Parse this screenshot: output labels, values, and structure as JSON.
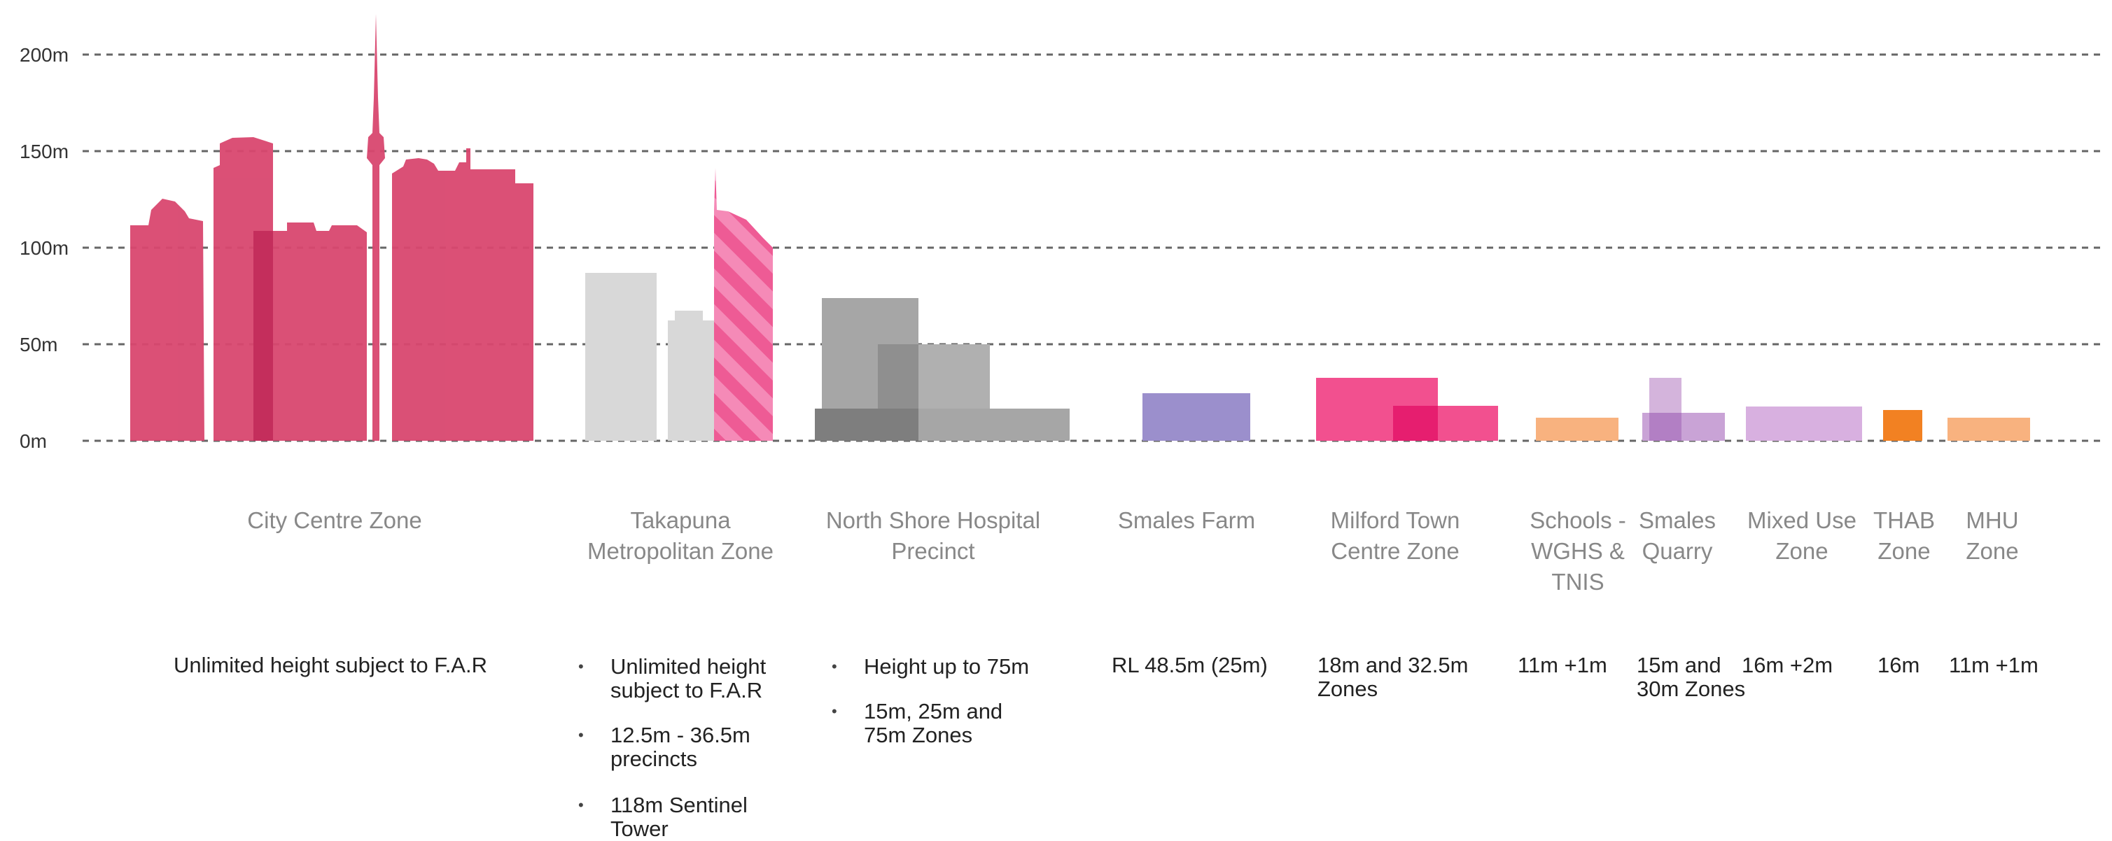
{
  "chart_data": {
    "type": "bar",
    "ylabel": "",
    "ylim": [
      0,
      200
    ],
    "grid": true,
    "yticks": [
      "0m",
      "50m",
      "100m",
      "150m",
      "200m"
    ],
    "yticks_values": [
      0,
      50,
      100,
      150,
      200
    ],
    "categories": [
      "City Centre Zone",
      "Takapuna Metropolitan Zone",
      "North Shore Hospital Precinct",
      "Smales Farm",
      "Milford Town Centre Zone",
      "Schools - WGHS & TNIS",
      "Smales Quarry",
      "Mixed Use Zone",
      "THAB Zone",
      "MHU Zone"
    ],
    "max_heights_m": [
      220,
      118,
      75,
      25,
      32.5,
      12,
      30,
      18,
      16,
      12
    ],
    "colors": {
      "city_centre": "#d9476f",
      "city_centre_dark": "#c42e5c",
      "takapuna_grey": "#d8d8d8",
      "takapuna_pink": "#ee5b95",
      "hospital_grey": "#a6a6a6",
      "hospital_dark": "#7e7e7e",
      "smales_farm": "#9b8fcc",
      "milford": "#f2508f",
      "milford_dark": "#e61e6f",
      "schools": "#f8b27f",
      "smales_quarry": "#c9a3d6",
      "mixed_use": "#d8b0e0",
      "thab": "#f28122",
      "mhu": "#f8b27f",
      "gridline": "#666666"
    }
  },
  "zones": [
    {
      "name": "City Centre Zone",
      "notes": [
        {
          "text": "Unlimited height subject to F.A.R",
          "bullet": false
        }
      ]
    },
    {
      "name": "Takapuna\nMetropolitan Zone",
      "notes": [
        {
          "text": "Unlimited height\nsubject to F.A.R",
          "bullet": true
        },
        {
          "text": "12.5m - 36.5m\nprecincts",
          "bullet": true
        },
        {
          "text": "118m Sentinel\nTower",
          "bullet": true
        }
      ]
    },
    {
      "name": "North Shore Hospital\nPrecinct",
      "notes": [
        {
          "text": "Height up to 75m",
          "bullet": true
        },
        {
          "text": "15m, 25m and\n75m Zones",
          "bullet": true
        }
      ]
    },
    {
      "name": "Smales Farm",
      "notes": [
        {
          "text": "RL 48.5m (25m)",
          "bullet": false
        }
      ]
    },
    {
      "name": "Milford Town\nCentre Zone",
      "notes": [
        {
          "text": "18m and 32.5m\nZones",
          "bullet": false
        }
      ]
    },
    {
      "name": "Schools -\nWGHS &\nTNIS",
      "notes": [
        {
          "text": "11m +1m",
          "bullet": false
        }
      ]
    },
    {
      "name": "Smales\nQuarry",
      "notes": [
        {
          "text": "15m and\n30m Zones",
          "bullet": false
        }
      ]
    },
    {
      "name": "Mixed Use\nZone",
      "notes": [
        {
          "text": "16m +2m",
          "bullet": false
        }
      ]
    },
    {
      "name": "THAB\nZone",
      "notes": [
        {
          "text": "16m",
          "bullet": false
        }
      ]
    },
    {
      "name": "MHU\nZone",
      "notes": [
        {
          "text": "11m +1m",
          "bullet": false
        }
      ]
    }
  ]
}
